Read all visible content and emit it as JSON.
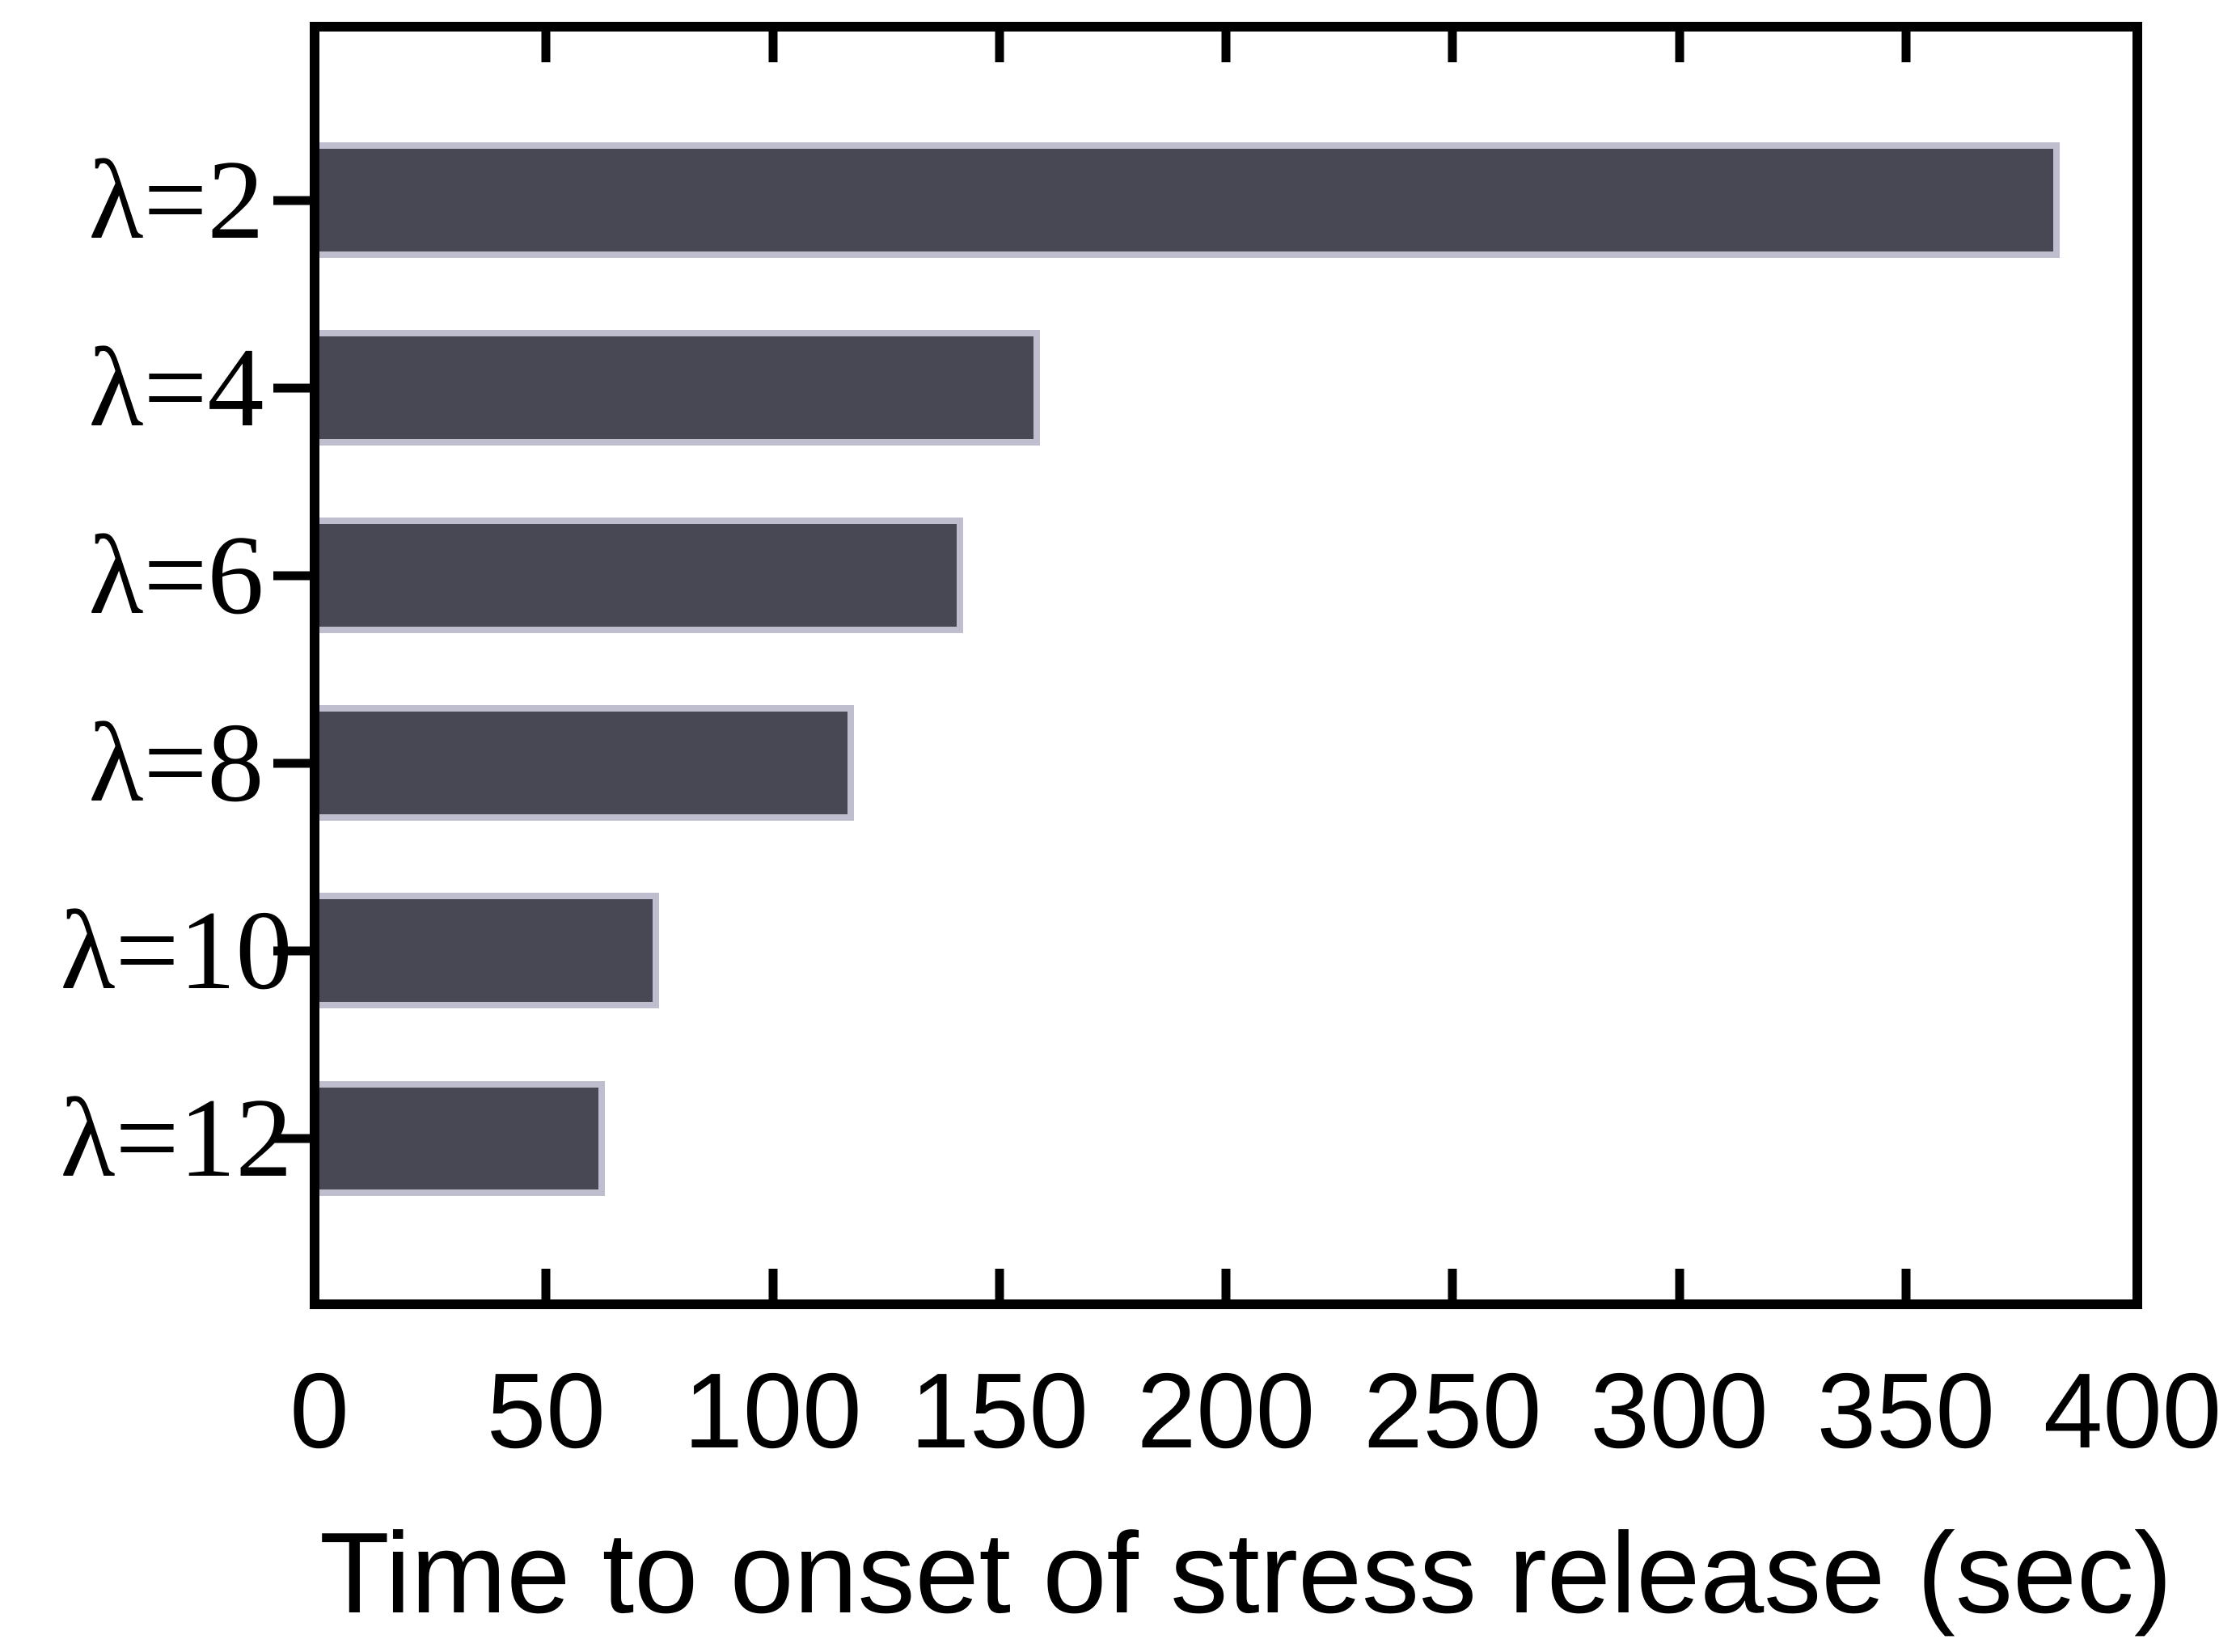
{
  "chart_data": {
    "type": "bar",
    "orientation": "horizontal",
    "title": "",
    "xlabel": "Time to onset of stress release (sec)",
    "ylabel": "",
    "categories": [
      "λ=2",
      "λ=4",
      "λ=6",
      "λ=8",
      "λ=10",
      "λ=12"
    ],
    "values": [
      384,
      159,
      142,
      118,
      75,
      63
    ],
    "xlim": [
      0,
      400
    ],
    "xticks": [
      0,
      50,
      100,
      150,
      200,
      250,
      300,
      350,
      400
    ],
    "grid": false,
    "legend": false,
    "colors": {
      "bar_fill": "#484855",
      "bar_border": "#bebece",
      "axis": "#000000",
      "text": "#000000",
      "background": "#ffffff"
    }
  }
}
